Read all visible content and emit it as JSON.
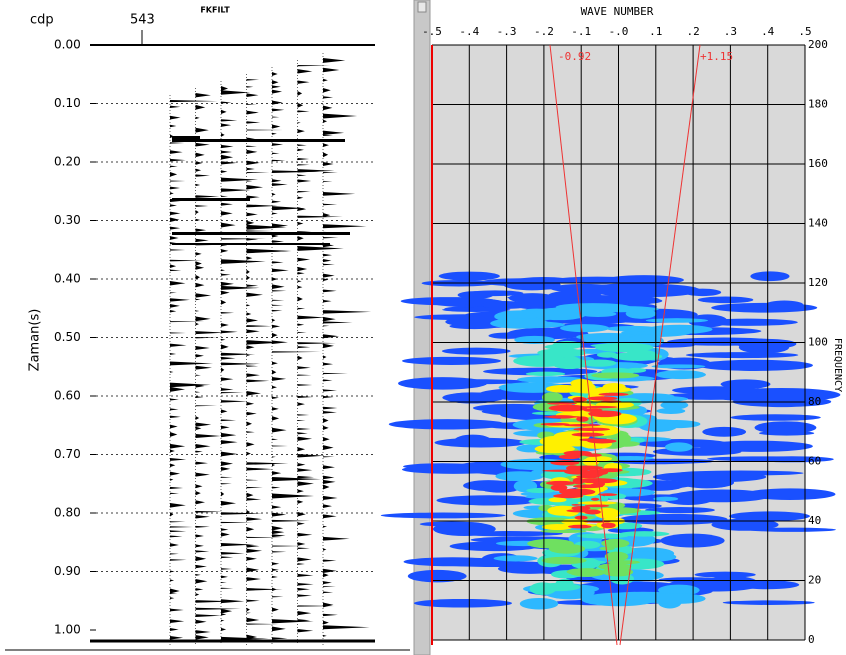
{
  "left_panel": {
    "title": "FKFILT",
    "cdp_label": "cdp",
    "cdp_value": "543",
    "y_label": "Zaman(s)",
    "y_ticks": [
      "0.00",
      "0.10",
      "0.20",
      "0.30",
      "0.40",
      "0.50",
      "0.60",
      "0.70",
      "0.80",
      "0.90",
      "1.00"
    ]
  },
  "right_panel": {
    "x_label": "WAVE NUMBER",
    "y_label": "FREQUENCY",
    "x_ticks": [
      "-.5",
      "-.4",
      "-.3",
      "-.2",
      "-.1",
      "-.0",
      ".1",
      ".2",
      ".3",
      ".4",
      ".5"
    ],
    "y_ticks": [
      "0",
      "20",
      "40",
      "60",
      "80",
      "100",
      "120",
      "140",
      "160",
      "180",
      "200"
    ],
    "filter_labels": [
      "-0.92",
      "+1.15"
    ]
  }
}
